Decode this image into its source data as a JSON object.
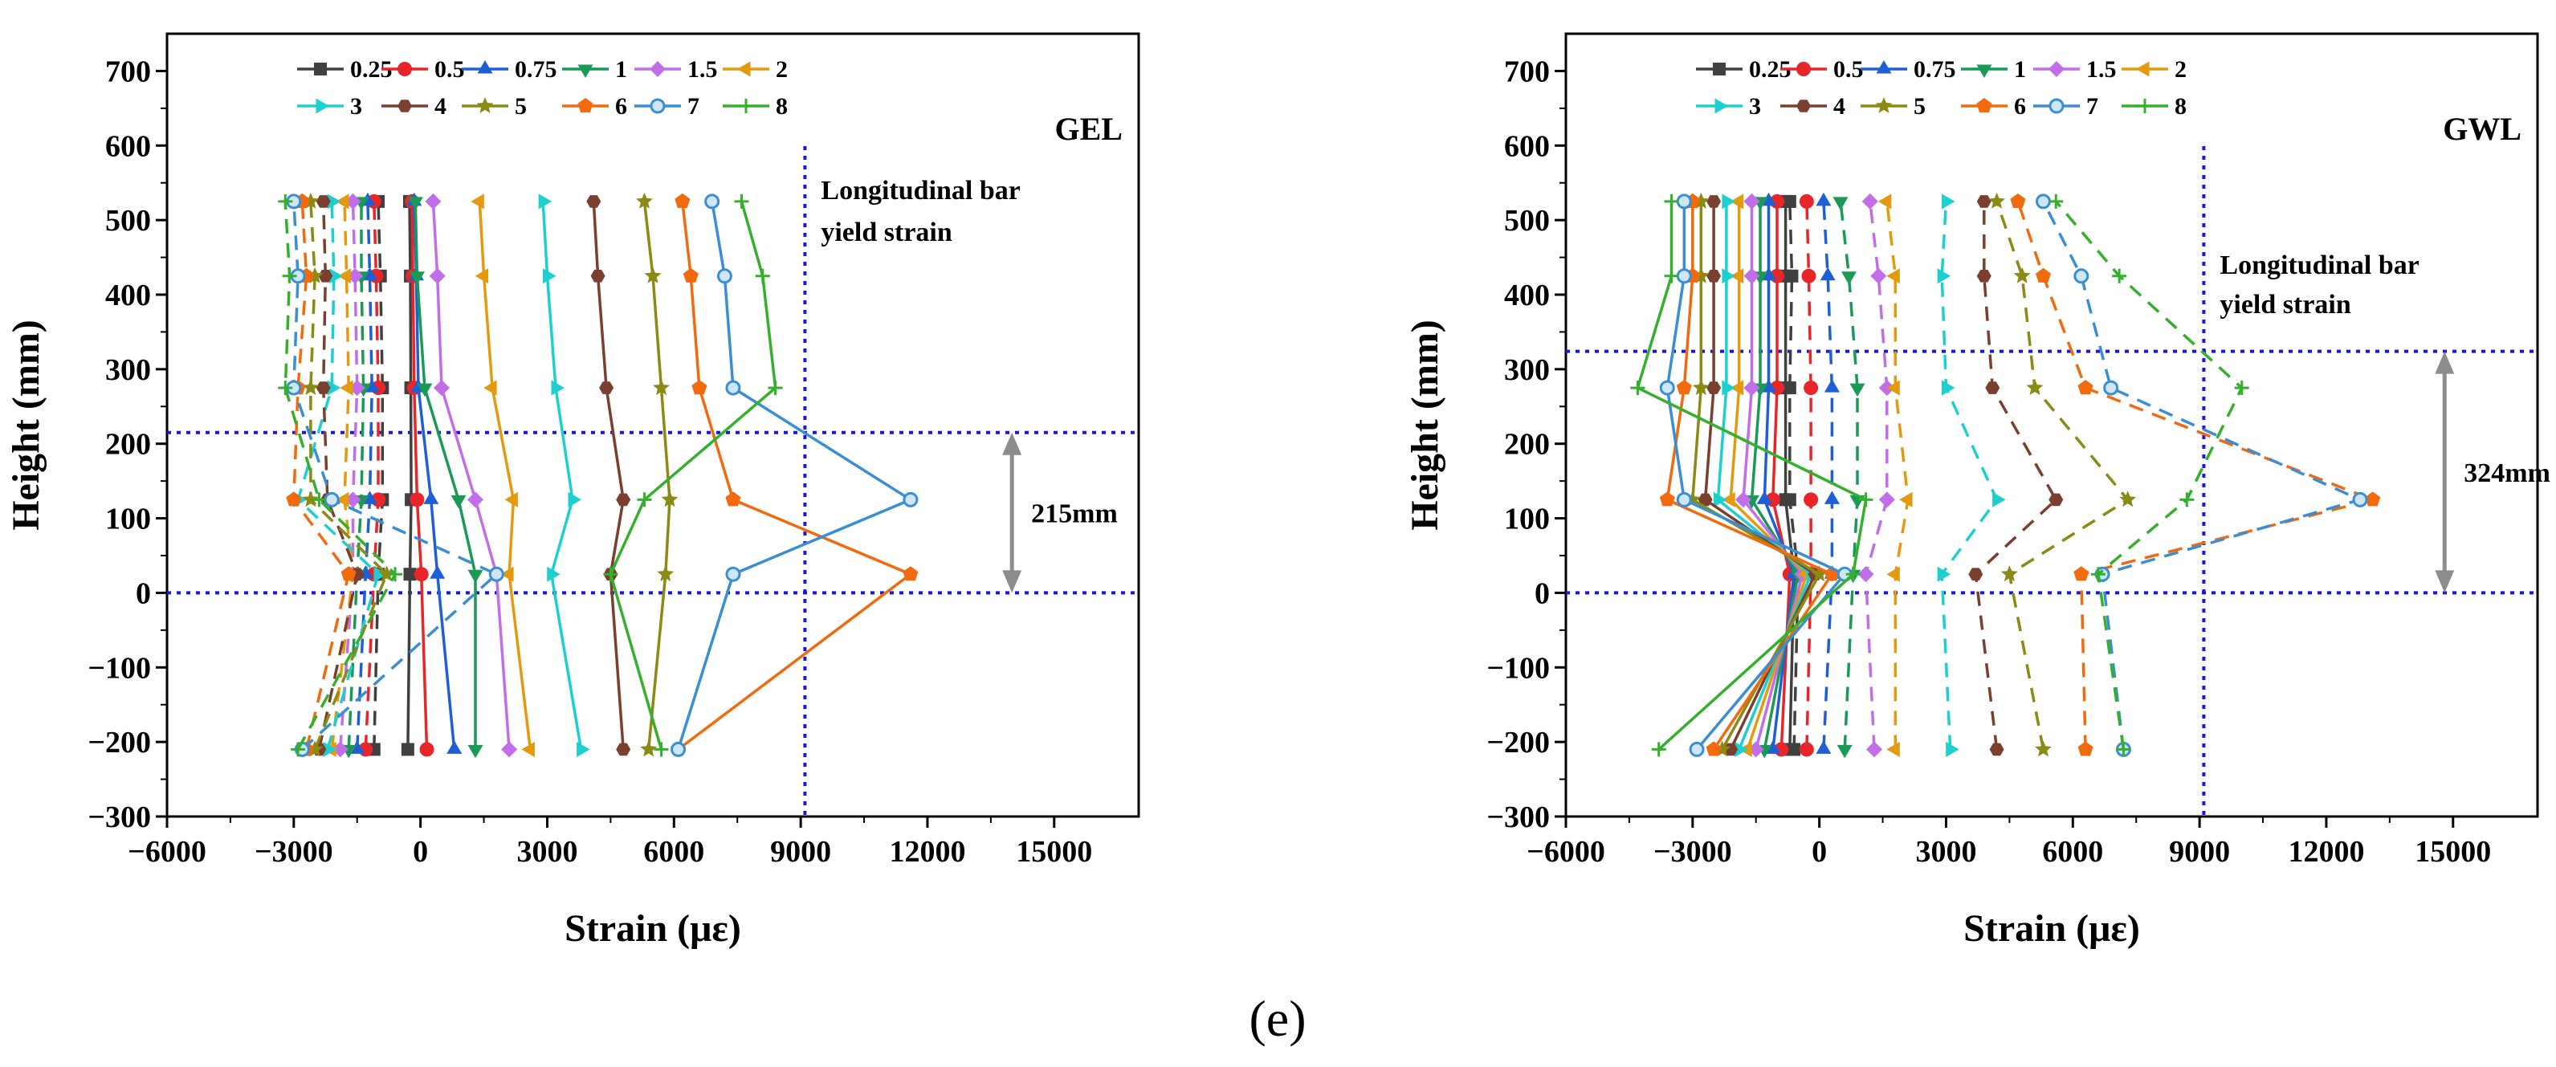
{
  "figure_caption": "(e)",
  "colors": {
    "0.25": "#404040",
    "0.5": "#e8262a",
    "0.75": "#1f5fd6",
    "1": "#1a9a56",
    "1.5": "#c16ee8",
    "2": "#e49a0f",
    "3": "#1ecfcf",
    "4": "#7a3f2e",
    "5": "#8a8a14",
    "6": "#f26a0e",
    "7": "#3a8ed4",
    "8": "#34b02c",
    "guide": "#1a1ad6",
    "arrow": "#8c8c8c"
  },
  "chart_data": [
    {
      "type": "line",
      "panel": "GEL",
      "xlabel": "Strain (με)",
      "ylabel": "Height (mm)",
      "xlim": [
        -6000,
        17000
      ],
      "ylim": [
        -300,
        750
      ],
      "xticks": [
        -6000,
        -3000,
        0,
        3000,
        6000,
        9000,
        12000,
        15000
      ],
      "xtick_labels": [
        "−6000",
        "−3000",
        "0",
        "3000",
        "6000",
        "9000",
        "12000",
        "15000"
      ],
      "yticks": [
        -300,
        -200,
        -100,
        0,
        100,
        200,
        300,
        400,
        500,
        600,
        700
      ],
      "ytick_labels": [
        "−300",
        "−200",
        "−100",
        "0",
        "100",
        "200",
        "300",
        "400",
        "500",
        "600",
        "700"
      ],
      "heights": [
        -210,
        25,
        125,
        275,
        425,
        525
      ],
      "yield_strain": 9100,
      "yield_label_1": "Longitudinal bar",
      "yield_label_2": "yield strain",
      "plastic_hinge": [
        0,
        215
      ],
      "plastic_hinge_label": "215mm",
      "series": [
        {
          "name": "0.25",
          "solid": [
            -300,
            -250,
            -220,
            -230,
            -240,
            -260
          ],
          "dashed": [
            -1100,
            -1000,
            -900,
            -900,
            -950,
            -1000
          ]
        },
        {
          "name": "0.5",
          "solid": [
            150,
            20,
            -80,
            -150,
            -180,
            -200
          ],
          "dashed": [
            -1300,
            -1100,
            -1000,
            -1000,
            -1050,
            -1100
          ]
        },
        {
          "name": "0.75",
          "solid": [
            800,
            400,
            250,
            -50,
            -100,
            -150
          ],
          "dashed": [
            -1500,
            -1300,
            -1200,
            -1150,
            -1200,
            -1250
          ]
        },
        {
          "name": "1",
          "solid": [
            1300,
            1300,
            900,
            100,
            -80,
            -120
          ],
          "dashed": [
            -1700,
            -1500,
            -1400,
            -1350,
            -1400,
            -1400
          ]
        },
        {
          "name": "1.5",
          "solid": [
            2100,
            1800,
            1300,
            500,
            400,
            300
          ],
          "dashed": [
            -1900,
            -1600,
            -1600,
            -1500,
            -1550,
            -1600
          ]
        },
        {
          "name": "2",
          "solid": [
            2600,
            2100,
            2200,
            1700,
            1500,
            1400
          ],
          "dashed": [
            -2100,
            -1600,
            -1800,
            -1700,
            -1750,
            -1800
          ]
        },
        {
          "name": "3",
          "solid": [
            3800,
            3100,
            3600,
            3200,
            3000,
            2900
          ],
          "dashed": [
            -2200,
            -1000,
            -2900,
            -2100,
            -2050,
            -2100
          ]
        },
        {
          "name": "4",
          "solid": [
            4800,
            4500,
            4800,
            4400,
            4200,
            4100
          ],
          "dashed": [
            -2400,
            -1500,
            -2200,
            -2300,
            -2250,
            -2300
          ]
        },
        {
          "name": "5",
          "solid": [
            5400,
            5800,
            5900,
            5700,
            5500,
            5300
          ],
          "dashed": [
            -2500,
            -800,
            -2600,
            -2600,
            -2500,
            -2600
          ]
        },
        {
          "name": "6",
          "solid": [
            6100,
            11600,
            7400,
            6600,
            6400,
            6200
          ],
          "dashed": [
            -2700,
            -1700,
            -3000,
            -2900,
            -2700,
            -2800
          ]
        },
        {
          "name": "7",
          "solid": [
            6100,
            7400,
            11600,
            7400,
            7200,
            6900
          ],
          "dashed": [
            -2800,
            1800,
            -2100,
            -3000,
            -2900,
            -3000
          ]
        },
        {
          "name": "8",
          "solid": [
            5700,
            4500,
            5300,
            8400,
            8100,
            7600
          ],
          "dashed": [
            -2900,
            -600,
            -2400,
            -3200,
            -3100,
            -3200
          ]
        }
      ]
    },
    {
      "type": "line",
      "panel": "GWL",
      "xlabel": "Strain (με)",
      "ylabel": "Height (mm)",
      "xlim": [
        -6000,
        17000
      ],
      "ylim": [
        -300,
        750
      ],
      "xticks": [
        -6000,
        -3000,
        0,
        3000,
        6000,
        9000,
        12000,
        15000
      ],
      "xtick_labels": [
        "−6000",
        "−3000",
        "0",
        "3000",
        "6000",
        "9000",
        "12000",
        "15000"
      ],
      "yticks": [
        -300,
        -200,
        -100,
        0,
        100,
        200,
        300,
        400,
        500,
        600,
        700
      ],
      "ytick_labels": [
        "−300",
        "−200",
        "−100",
        "0",
        "100",
        "200",
        "300",
        "400",
        "500",
        "600",
        "700"
      ],
      "heights": [
        -210,
        25,
        125,
        275,
        425,
        525
      ],
      "yield_strain": 9100,
      "yield_label_1": "Longitudinal bar",
      "yield_label_2": "yield strain",
      "plastic_hinge": [
        0,
        324
      ],
      "plastic_hinge_label": "324mm",
      "series": [
        {
          "name": "0.25",
          "solid": [
            -700,
            -600,
            -800,
            -800,
            -800,
            -800
          ],
          "dashed": [
            -600,
            -500,
            -700,
            -700,
            -650,
            -700
          ]
        },
        {
          "name": "0.5",
          "solid": [
            -900,
            -700,
            -1100,
            -1000,
            -1000,
            -1000
          ],
          "dashed": [
            -300,
            -200,
            -200,
            -200,
            -250,
            -300
          ]
        },
        {
          "name": "0.75",
          "solid": [
            -1100,
            -600,
            -1300,
            -1200,
            -1200,
            -1200
          ],
          "dashed": [
            100,
            300,
            300,
            300,
            200,
            100
          ]
        },
        {
          "name": "1",
          "solid": [
            -1300,
            -500,
            -1600,
            -1400,
            -1400,
            -1400
          ],
          "dashed": [
            600,
            800,
            900,
            900,
            700,
            500
          ]
        },
        {
          "name": "1.5",
          "solid": [
            -1500,
            -400,
            -1800,
            -1600,
            -1600,
            -1600
          ],
          "dashed": [
            1300,
            1100,
            1600,
            1600,
            1400,
            1200
          ]
        },
        {
          "name": "2",
          "solid": [
            -1700,
            -300,
            -2100,
            -1900,
            -1900,
            -1900
          ],
          "dashed": [
            1800,
            1800,
            2100,
            1800,
            1800,
            1600
          ]
        },
        {
          "name": "3",
          "solid": [
            -1900,
            -200,
            -2400,
            -2200,
            -2200,
            -2200
          ],
          "dashed": [
            3100,
            2900,
            4200,
            3000,
            2900,
            3000
          ]
        },
        {
          "name": "4",
          "solid": [
            -2100,
            -100,
            -2700,
            -2500,
            -2500,
            -2500
          ],
          "dashed": [
            4200,
            3700,
            5600,
            4100,
            3900,
            3900
          ]
        },
        {
          "name": "5",
          "solid": [
            -2300,
            0,
            -3000,
            -2800,
            -2800,
            -2800
          ],
          "dashed": [
            5300,
            4500,
            7300,
            5100,
            4800,
            4200
          ]
        },
        {
          "name": "6",
          "solid": [
            -2500,
            300,
            -3600,
            -3200,
            -3000,
            -3000
          ],
          "dashed": [
            6300,
            6200,
            13100,
            6300,
            5300,
            4700
          ]
        },
        {
          "name": "7",
          "solid": [
            -2900,
            600,
            -3200,
            -3600,
            -3200,
            -3200
          ],
          "dashed": [
            7200,
            6700,
            12800,
            6900,
            6200,
            5300
          ]
        },
        {
          "name": "8",
          "solid": [
            -3800,
            800,
            1100,
            -4300,
            -3500,
            -3500
          ],
          "dashed": [
            7200,
            6600,
            8700,
            10000,
            7100,
            5600
          ]
        }
      ]
    }
  ]
}
